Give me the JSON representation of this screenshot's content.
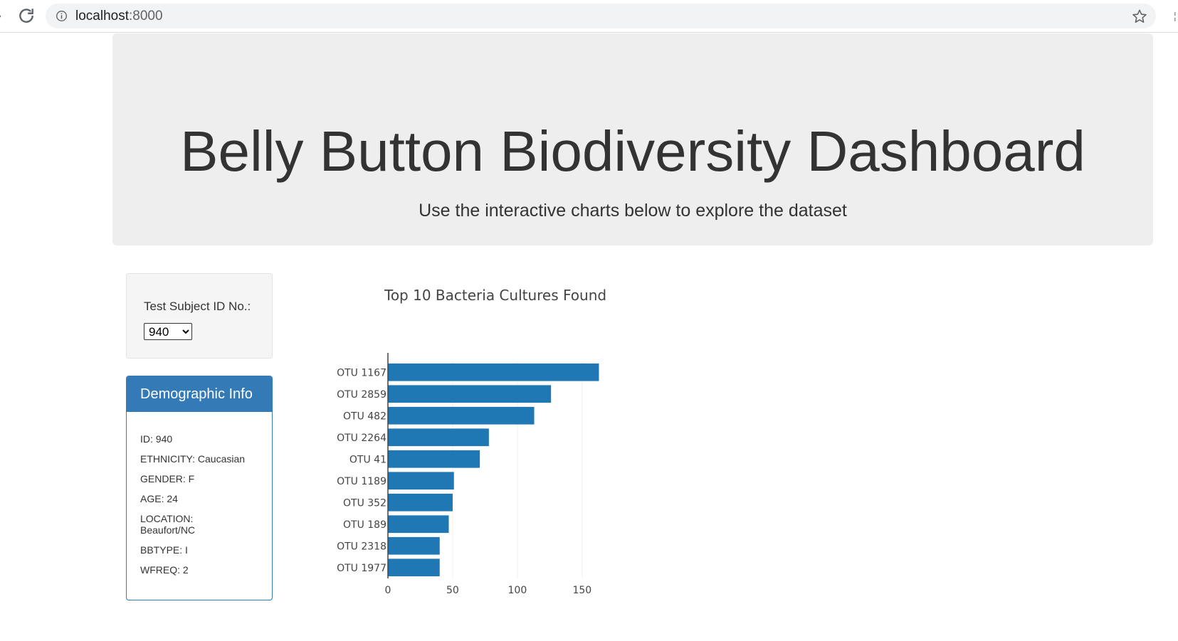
{
  "browser": {
    "url_host": "localhost",
    "url_port": ":8000"
  },
  "header": {
    "title": "Belly Button Biodiversity Dashboard",
    "subtitle": "Use the interactive charts below to explore the dataset"
  },
  "selector": {
    "label": "Test Subject ID No.:",
    "selected": "940",
    "options": [
      "940"
    ]
  },
  "demographics": {
    "heading": "Demographic Info",
    "rows": [
      "ID: 940",
      "ETHNICITY: Caucasian",
      "GENDER: F",
      "AGE: 24",
      "LOCATION: Beaufort/NC",
      "BBTYPE: I",
      "WFREQ: 2"
    ]
  },
  "colors": {
    "bar": "#1f77b4",
    "panel": "#337ab7",
    "jumbotron": "#eeeeee"
  },
  "chart_data": {
    "type": "bar",
    "orientation": "horizontal",
    "title": "Top 10 Bacteria Cultures Found",
    "categories": [
      "OTU 1167",
      "OTU 2859",
      "OTU 482",
      "OTU 2264",
      "OTU 41",
      "OTU 1189",
      "OTU 352",
      "OTU 189",
      "OTU 2318",
      "OTU 1977"
    ],
    "values": [
      163,
      126,
      113,
      78,
      71,
      51,
      50,
      47,
      40,
      40
    ],
    "xticks": [
      0,
      50,
      100,
      150
    ],
    "xlim": [
      0,
      171
    ],
    "grid": true,
    "xlabel": "",
    "ylabel": ""
  }
}
